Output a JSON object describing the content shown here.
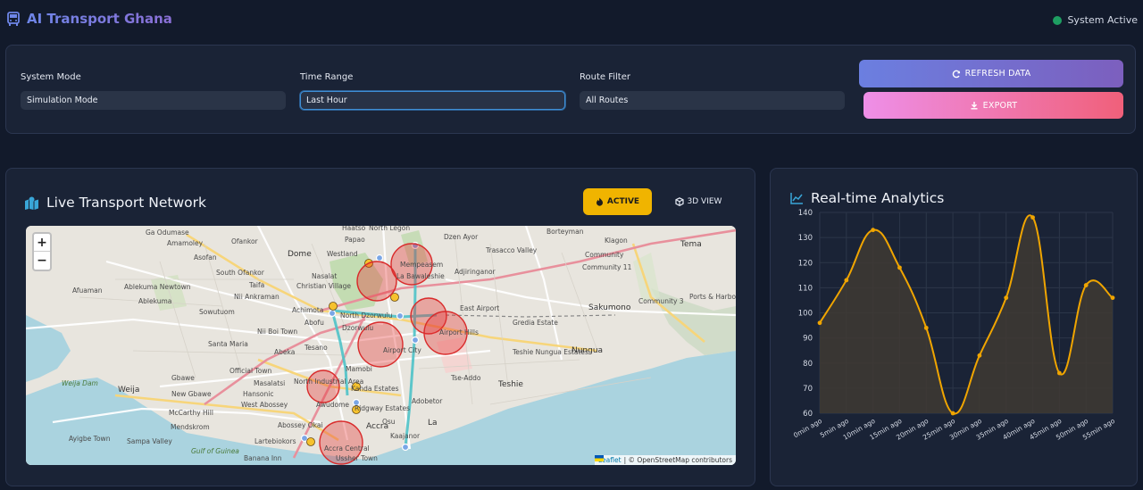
{
  "header": {
    "title": "AI Transport Ghana",
    "status": "System Active"
  },
  "controls": {
    "system_mode": {
      "label": "System Mode",
      "value": "Simulation Mode"
    },
    "time_range": {
      "label": "Time Range",
      "value": "Last Hour"
    },
    "route_filter": {
      "label": "Route Filter",
      "value": "All Routes"
    },
    "refresh_label": "REFRESH DATA",
    "export_label": "EXPORT"
  },
  "map": {
    "title": "Live Transport Network",
    "active_label": "ACTIVE",
    "view3d_label": "3D VIEW",
    "zoom_in": "+",
    "zoom_out": "−",
    "attribution_leaflet": "Leaflet",
    "attribution_osm": "| © OpenStreetMap contributors",
    "places": [
      {
        "name": "Ga Odumase"
      },
      {
        "name": "Ofankor"
      },
      {
        "name": "Haatso"
      },
      {
        "name": "North Legon"
      },
      {
        "name": "Dzen Ayor"
      },
      {
        "name": "Borteyman"
      },
      {
        "name": "Amamoley"
      },
      {
        "name": "Papao"
      },
      {
        "name": "Klagon"
      },
      {
        "name": "Tema"
      },
      {
        "name": "Asofan"
      },
      {
        "name": "Dome"
      },
      {
        "name": "Westland"
      },
      {
        "name": "Trasacco Valley"
      },
      {
        "name": "Community"
      },
      {
        "name": "South Ofankor"
      },
      {
        "name": "Nasalat"
      },
      {
        "name": "Mempeasem"
      },
      {
        "name": "Adjiringanor"
      },
      {
        "name": "Community 11"
      },
      {
        "name": "Afuaman"
      },
      {
        "name": "Ablekuma Newtown"
      },
      {
        "name": "Taifa"
      },
      {
        "name": "Christian Village"
      },
      {
        "name": "La Bawaleshie"
      },
      {
        "name": "Ports & Harbo"
      },
      {
        "name": "Ablekuma"
      },
      {
        "name": "Nii Ankraman"
      },
      {
        "name": "Achimota"
      },
      {
        "name": "East Airport"
      },
      {
        "name": "Sakumono"
      },
      {
        "name": "Sowutuom"
      },
      {
        "name": "North Dzorwulu"
      },
      {
        "name": "Community 3"
      },
      {
        "name": "Abofu"
      },
      {
        "name": "Gredia Estate"
      },
      {
        "name": "Nii Boi Town"
      },
      {
        "name": "Dzorwulu"
      },
      {
        "name": "Santa Maria"
      },
      {
        "name": "Abeka"
      },
      {
        "name": "Tesano"
      },
      {
        "name": "Airport City"
      },
      {
        "name": "Airport Hills"
      },
      {
        "name": "Teshie Nungua Estates"
      },
      {
        "name": "Nungua"
      },
      {
        "name": "Official Town"
      },
      {
        "name": "Mamobi"
      },
      {
        "name": "Gbawe"
      },
      {
        "name": "North Industrial Area"
      },
      {
        "name": "Tse-Addo"
      },
      {
        "name": "Weija"
      },
      {
        "name": "New Gbawe"
      },
      {
        "name": "Kanda Estates"
      },
      {
        "name": "Teshie"
      },
      {
        "name": "Masalatsi"
      },
      {
        "name": "Hansonic"
      },
      {
        "name": "Adobetor"
      },
      {
        "name": "McCarthy Hill"
      },
      {
        "name": "West Abossey"
      },
      {
        "name": "Awudome"
      },
      {
        "name": "Ridgway Estates"
      },
      {
        "name": "Abossey Okai"
      },
      {
        "name": "Osu"
      },
      {
        "name": "La"
      },
      {
        "name": "Mendskrom"
      },
      {
        "name": "Ayigbe Town"
      },
      {
        "name": "Sampa Valley"
      },
      {
        "name": "Accra"
      },
      {
        "name": "Lartebiokors"
      },
      {
        "name": "Accra Central"
      },
      {
        "name": "Kaajanor"
      },
      {
        "name": "Banana Inn"
      },
      {
        "name": "Ussher Town"
      },
      {
        "name": "Weija Dam"
      },
      {
        "name": "Gulf of Guinea"
      }
    ]
  },
  "analytics": {
    "title": "Real-time Analytics",
    "colors": {
      "line": "#f0a500",
      "fill": "#3f3a33",
      "grid": "#2c3649"
    }
  },
  "chart_data": {
    "type": "line",
    "title": "Real-time Analytics",
    "categories": [
      "0min ago",
      "5min ago",
      "10min ago",
      "15min ago",
      "20min ago",
      "25min ago",
      "30min ago",
      "35min ago",
      "40min ago",
      "45min ago",
      "50min ago",
      "55min ago"
    ],
    "series": [
      {
        "values": [
          96,
          113,
          133,
          118,
          94,
          60,
          83,
          106,
          138,
          76,
          111,
          106
        ]
      }
    ],
    "yticks": [
      60,
      70,
      80,
      90,
      100,
      110,
      120,
      130,
      140
    ],
    "ylim": [
      60,
      140
    ],
    "grid": true,
    "filled": true
  }
}
